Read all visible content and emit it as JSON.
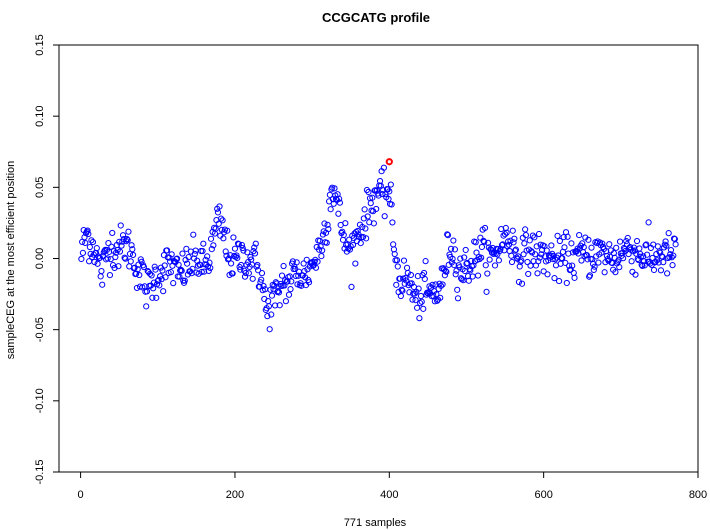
{
  "chart_data": {
    "type": "scatter",
    "title": "CCGCATG profile",
    "xlabel": "771 samples",
    "ylabel": "sampleCEG at the most efficient position",
    "xlim": [
      -28,
      800
    ],
    "ylim": [
      -0.15,
      0.15
    ],
    "xticks": [
      0,
      200,
      400,
      600,
      800
    ],
    "xtick_labels": [
      "0",
      "200",
      "400",
      "600",
      "800"
    ],
    "yticks": [
      -0.15,
      -0.1,
      -0.05,
      0.0,
      0.05,
      0.1,
      0.15
    ],
    "ytick_labels": [
      "-0.15",
      "-0.10",
      "-0.05",
      "0.00",
      "0.05",
      "0.10",
      "0.15"
    ],
    "grid": false,
    "legend": "none",
    "colors": {
      "points": "#0000ff",
      "highlight": "#ff0000",
      "axis": "#000000"
    },
    "highlight": {
      "x": 400,
      "y": 0.068
    },
    "anchors": [
      [
        1,
        0.002
      ],
      [
        5,
        0.012
      ],
      [
        8,
        0.018
      ],
      [
        12,
        0.012
      ],
      [
        18,
        0.008
      ],
      [
        22,
        -0.002
      ],
      [
        28,
        -0.01
      ],
      [
        34,
        0.004
      ],
      [
        40,
        0.01
      ],
      [
        46,
        0.006
      ],
      [
        52,
        0.008
      ],
      [
        58,
        0.01
      ],
      [
        64,
        0.006
      ],
      [
        70,
        -0.002
      ],
      [
        78,
        -0.012
      ],
      [
        86,
        -0.022
      ],
      [
        94,
        -0.015
      ],
      [
        102,
        -0.01
      ],
      [
        110,
        -0.006
      ],
      [
        118,
        -0.004
      ],
      [
        126,
        -0.012
      ],
      [
        134,
        -0.008
      ],
      [
        142,
        -0.004
      ],
      [
        150,
        0.0
      ],
      [
        158,
        -0.006
      ],
      [
        166,
        -0.002
      ],
      [
        172,
        0.012
      ],
      [
        178,
        0.026
      ],
      [
        184,
        0.02
      ],
      [
        190,
        0.005
      ],
      [
        196,
        -0.002
      ],
      [
        204,
        0.0
      ],
      [
        212,
        0.002
      ],
      [
        220,
        -0.002
      ],
      [
        228,
        -0.004
      ],
      [
        234,
        -0.012
      ],
      [
        238,
        -0.028
      ],
      [
        242,
        -0.04
      ],
      [
        246,
        -0.03
      ],
      [
        250,
        -0.026
      ],
      [
        256,
        -0.03
      ],
      [
        262,
        -0.012
      ],
      [
        268,
        -0.02
      ],
      [
        274,
        -0.012
      ],
      [
        282,
        -0.01
      ],
      [
        290,
        -0.012
      ],
      [
        298,
        -0.006
      ],
      [
        306,
        0.002
      ],
      [
        314,
        0.014
      ],
      [
        320,
        0.03
      ],
      [
        326,
        0.052
      ],
      [
        332,
        0.04
      ],
      [
        338,
        0.022
      ],
      [
        344,
        0.01
      ],
      [
        350,
        0.005
      ],
      [
        356,
        0.012
      ],
      [
        362,
        0.02
      ],
      [
        370,
        0.03
      ],
      [
        378,
        0.04
      ],
      [
        386,
        0.048
      ],
      [
        392,
        0.042
      ],
      [
        398,
        0.05
      ],
      [
        402,
        0.035
      ],
      [
        406,
        0.01
      ],
      [
        410,
        -0.01
      ],
      [
        416,
        -0.016
      ],
      [
        422,
        -0.014
      ],
      [
        428,
        -0.018
      ],
      [
        434,
        -0.03
      ],
      [
        440,
        -0.026
      ],
      [
        446,
        -0.022
      ],
      [
        452,
        -0.026
      ],
      [
        460,
        -0.024
      ],
      [
        468,
        -0.02
      ],
      [
        474,
        0.0
      ],
      [
        480,
        0.01
      ],
      [
        488,
        -0.006
      ],
      [
        496,
        -0.008
      ],
      [
        504,
        -0.004
      ],
      [
        512,
        0.0
      ],
      [
        520,
        0.008
      ],
      [
        528,
        0.0
      ],
      [
        536,
        0.002
      ],
      [
        544,
        0.01
      ],
      [
        552,
        0.015
      ],
      [
        560,
        0.01
      ],
      [
        568,
        0.0
      ],
      [
        576,
        0.004
      ],
      [
        584,
        0.006
      ],
      [
        592,
        0.003
      ],
      [
        600,
        0.002
      ],
      [
        610,
        0.0
      ],
      [
        620,
        -0.002
      ],
      [
        630,
        0.002
      ],
      [
        640,
        0.0
      ],
      [
        650,
        0.003
      ],
      [
        660,
        0.002
      ],
      [
        670,
        0.004
      ],
      [
        680,
        0.002
      ],
      [
        690,
        0.0
      ],
      [
        700,
        0.003
      ],
      [
        710,
        0.008
      ],
      [
        720,
        0.004
      ],
      [
        730,
        0.002
      ],
      [
        740,
        0.0
      ],
      [
        750,
        0.003
      ],
      [
        760,
        0.002
      ],
      [
        770,
        0.002
      ]
    ],
    "n_points": 771,
    "noise_sd": 0.0075
  }
}
